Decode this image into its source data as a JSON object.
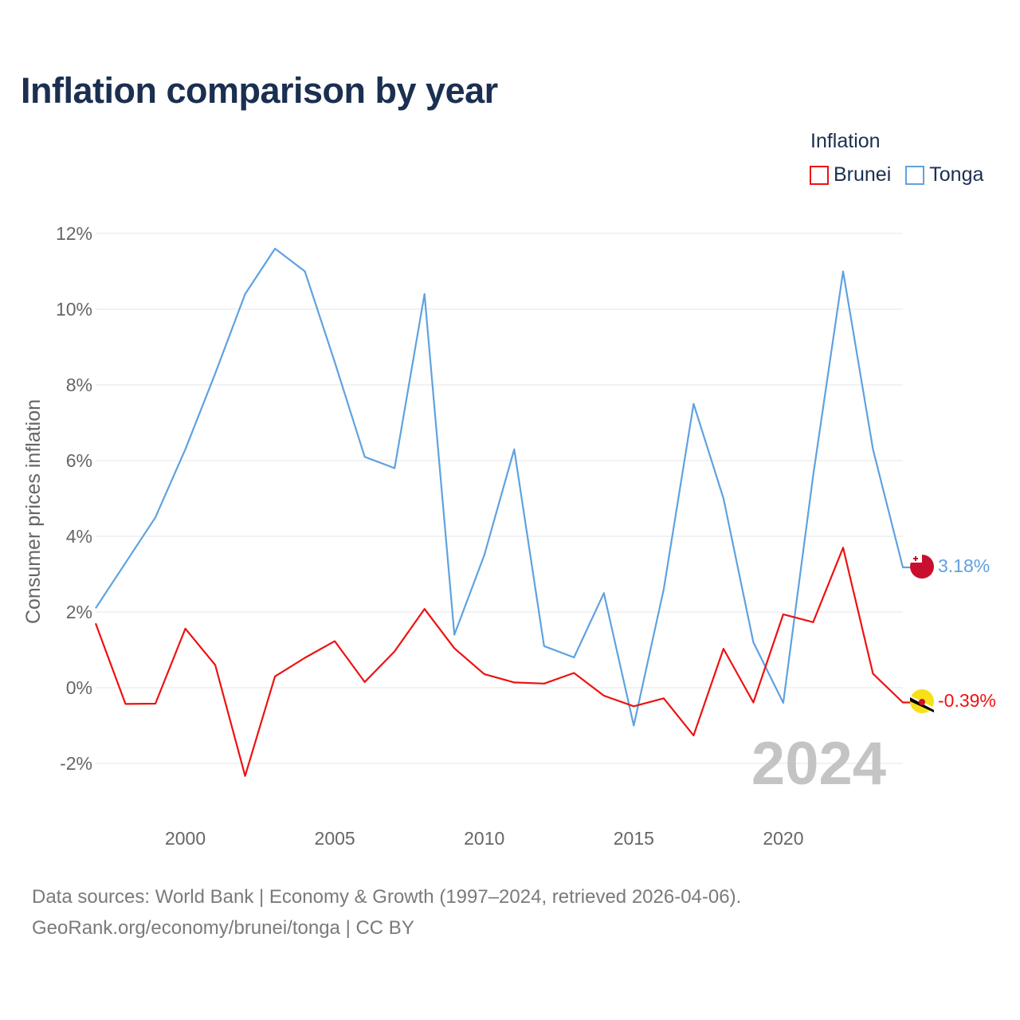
{
  "title": "Inflation comparison by year",
  "legend": {
    "title": "Inflation",
    "items": [
      {
        "name": "Brunei",
        "color": "#ee1111"
      },
      {
        "name": "Tonga",
        "color": "#5fa2e0"
      }
    ]
  },
  "year_watermark": "2024",
  "footer": {
    "line1": "Data sources: World Bank | Economy & Growth (1997–2024, retrieved 2026-04-06).",
    "line2": "GeoRank.org/economy/brunei/tonga | CC BY"
  },
  "end_labels": {
    "tonga": {
      "text": "3.18%",
      "flag_icon": "tonga-flag-icon",
      "color": "#5fa2e0"
    },
    "brunei": {
      "text": "-0.39%",
      "flag_icon": "brunei-flag-icon",
      "color": "#ee1111"
    }
  },
  "chart_data": {
    "type": "line",
    "title": "Inflation comparison by year",
    "xlabel": "",
    "ylabel": "Consumer prices inflation",
    "xlim": [
      1997,
      2024
    ],
    "ylim": [
      -2.5,
      12.5
    ],
    "x_ticks": [
      2000,
      2005,
      2010,
      2015,
      2020
    ],
    "x_tick_labels": [
      "2000",
      "2005",
      "2010",
      "2015",
      "2020"
    ],
    "y_ticks": [
      -2,
      0,
      2,
      4,
      6,
      8,
      10,
      12
    ],
    "y_tick_labels": [
      "-2%",
      "0%",
      "2%",
      "4%",
      "6%",
      "8%",
      "10%",
      "12%"
    ],
    "grid": true,
    "legend_position": "top-right",
    "x": [
      1997,
      1998,
      1999,
      2000,
      2001,
      2002,
      2003,
      2004,
      2005,
      2006,
      2007,
      2008,
      2009,
      2010,
      2011,
      2012,
      2013,
      2014,
      2015,
      2016,
      2017,
      2018,
      2019,
      2020,
      2021,
      2022,
      2023,
      2024
    ],
    "series": [
      {
        "name": "Brunei",
        "color": "#ee1111",
        "values": [
          1.7,
          -0.43,
          -0.42,
          1.56,
          0.6,
          -2.33,
          0.3,
          0.79,
          1.23,
          0.15,
          0.96,
          2.08,
          1.04,
          0.36,
          0.14,
          0.11,
          0.39,
          -0.21,
          -0.49,
          -0.28,
          -1.26,
          1.03,
          -0.39,
          1.94,
          1.73,
          3.7,
          0.37,
          -0.39
        ]
      },
      {
        "name": "Tonga",
        "color": "#5fa2e0",
        "values": [
          2.1,
          3.3,
          4.5,
          6.3,
          8.3,
          10.4,
          11.6,
          11.0,
          8.6,
          6.1,
          5.8,
          10.4,
          1.4,
          3.5,
          6.3,
          1.1,
          0.8,
          2.5,
          -1.0,
          2.6,
          7.5,
          5.0,
          1.2,
          -0.4,
          5.6,
          11.0,
          6.3,
          3.18
        ]
      }
    ]
  }
}
